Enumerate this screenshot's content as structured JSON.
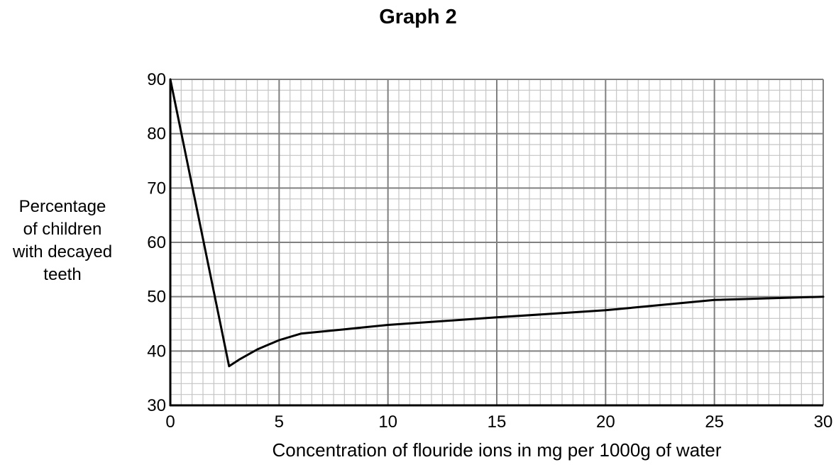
{
  "chart_data": {
    "type": "line",
    "title": "Graph 2",
    "xlabel": "Concentration of flouride ions in mg per 1000g of water",
    "ylabel_lines": [
      "Percentage",
      "of children",
      "with decayed",
      "teeth"
    ],
    "xlim": [
      0,
      30
    ],
    "ylim": [
      30,
      90
    ],
    "x_ticks": [
      0,
      5,
      10,
      15,
      20,
      25,
      30
    ],
    "y_ticks": [
      30,
      40,
      50,
      60,
      70,
      80,
      90
    ],
    "grid": true,
    "series": [
      {
        "x": [
          0,
          2.7,
          3.2,
          4,
          5,
          6,
          8,
          10,
          15,
          20,
          25,
          30
        ],
        "y": [
          90,
          37.2,
          38.5,
          40.3,
          42,
          43.2,
          44,
          44.8,
          46.2,
          47.5,
          49.4,
          50
        ]
      }
    ],
    "colors": {
      "major_grid": "#808080",
      "minor_grid": "#c4c4c4",
      "axis": "#000000",
      "line": "#000000"
    }
  }
}
